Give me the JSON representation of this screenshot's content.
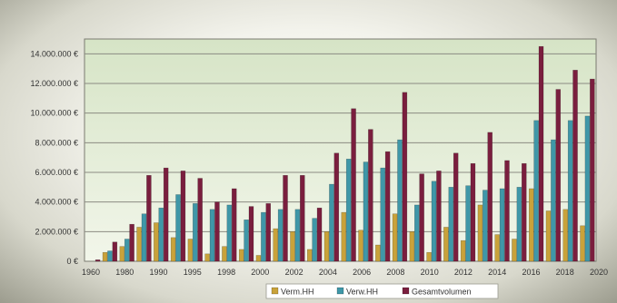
{
  "chart_data": {
    "type": "bar",
    "x_tick_labels": [
      "1960",
      "1980",
      "1990",
      "1995",
      "1998",
      "2000",
      "2002",
      "2004",
      "2006",
      "2008",
      "2010",
      "2012",
      "2014",
      "2016",
      "2018",
      "2020"
    ],
    "y_tick_labels": [
      "0 €",
      "2.000.000 €",
      "4.000.000 €",
      "6.000.000 €",
      "8.000.000 €",
      "10.000.000 €",
      "12.000.000 €",
      "14.000.000 €"
    ],
    "ylim": [
      0,
      15000000
    ],
    "grid": true,
    "legend_position": "bottom-right",
    "series": [
      {
        "name": "Verm.HH",
        "color": "#c9a23a",
        "values": [
          0,
          600000,
          1000000,
          2300000,
          2600000,
          1600000,
          1500000,
          500000,
          1000000,
          800000,
          400000,
          2200000,
          2000000,
          800000,
          2000000,
          3300000,
          2100000,
          1100000,
          3200000,
          2000000,
          600000,
          2300000,
          1400000,
          3800000,
          1800000,
          1500000,
          4900000,
          3400000,
          3500000,
          2400000
        ]
      },
      {
        "name": "Verw.HH",
        "color": "#3f97a8",
        "values": [
          0,
          700000,
          1500000,
          3200000,
          3600000,
          4500000,
          3900000,
          3500000,
          3800000,
          2800000,
          3300000,
          3500000,
          3500000,
          2900000,
          5200000,
          6900000,
          6700000,
          6300000,
          8200000,
          3800000,
          5400000,
          5000000,
          5100000,
          4800000,
          4900000,
          5000000,
          9500000,
          8200000,
          9500000,
          9800000
        ]
      },
      {
        "name": "Gesamtvolumen",
        "color": "#7a1e3e",
        "values": [
          100000,
          1300000,
          2500000,
          5800000,
          6300000,
          6100000,
          5600000,
          4000000,
          4900000,
          3700000,
          3900000,
          5800000,
          5800000,
          3600000,
          7300000,
          10300000,
          8900000,
          7400000,
          11400000,
          5900000,
          6100000,
          7300000,
          6600000,
          8700000,
          6800000,
          6600000,
          14500000,
          11600000,
          12900000,
          12300000
        ]
      }
    ]
  }
}
